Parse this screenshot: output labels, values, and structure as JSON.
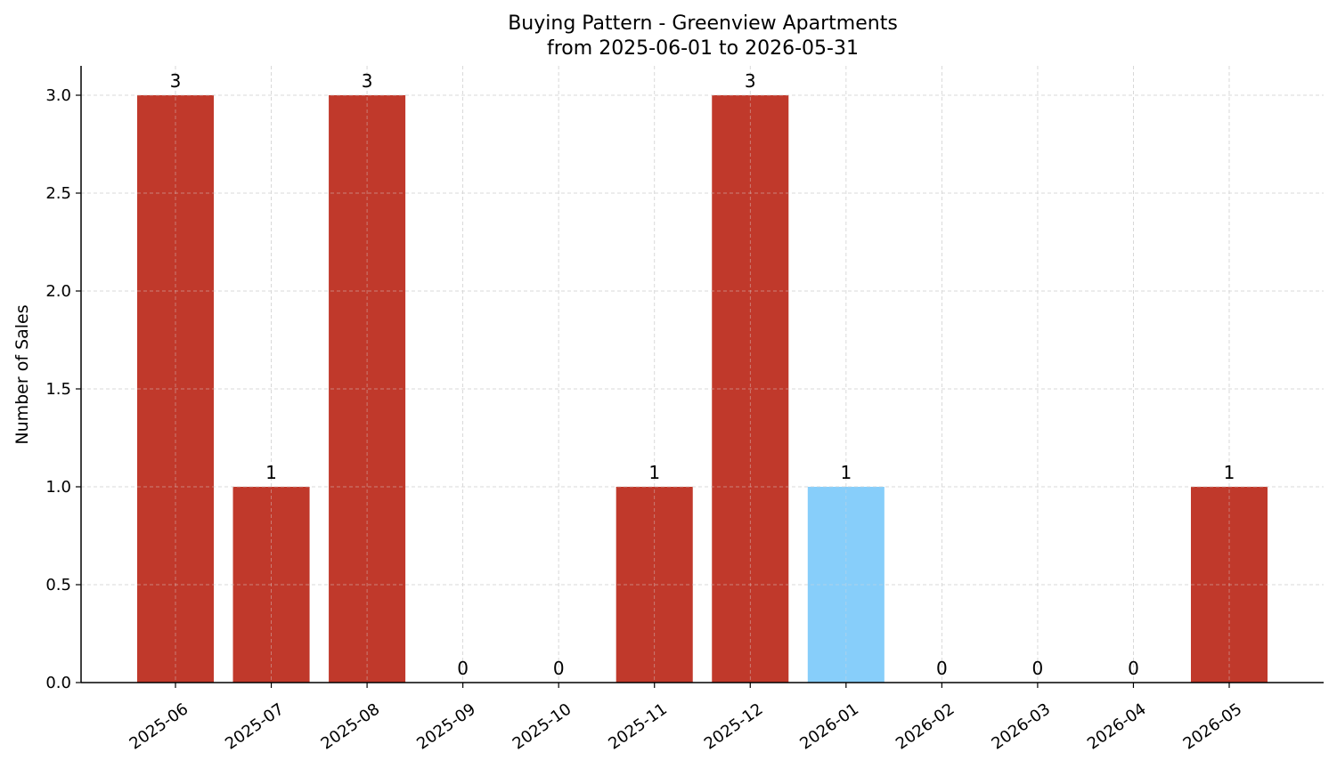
{
  "chart_data": {
    "type": "bar",
    "title": "Buying Pattern - Greenview Apartments",
    "subtitle": "from 2025-06-01 to 2026-05-31",
    "xlabel": "",
    "ylabel": "Number of Sales",
    "categories": [
      "2025-06",
      "2025-07",
      "2025-08",
      "2025-09",
      "2025-10",
      "2025-11",
      "2025-12",
      "2026-01",
      "2026-02",
      "2026-03",
      "2026-04",
      "2026-05"
    ],
    "values": [
      3,
      1,
      3,
      0,
      0,
      1,
      3,
      1,
      0,
      0,
      0,
      1
    ],
    "data_labels": [
      "3",
      "1",
      "3",
      "0",
      "0",
      "1",
      "3",
      "1",
      "0",
      "0",
      "0",
      "1"
    ],
    "bar_colors": [
      "#c0392b",
      "#c0392b",
      "#c0392b",
      "#c0392b",
      "#c0392b",
      "#c0392b",
      "#c0392b",
      "#87cefa",
      "#c0392b",
      "#c0392b",
      "#c0392b",
      "#c0392b"
    ],
    "yticks": [
      0.0,
      0.5,
      1.0,
      1.5,
      2.0,
      2.5,
      3.0
    ],
    "ytick_labels": [
      "0.0",
      "0.5",
      "1.0",
      "1.5",
      "2.0",
      "2.5",
      "3.0"
    ],
    "ylim": [
      0,
      3.15
    ],
    "grid": true
  }
}
